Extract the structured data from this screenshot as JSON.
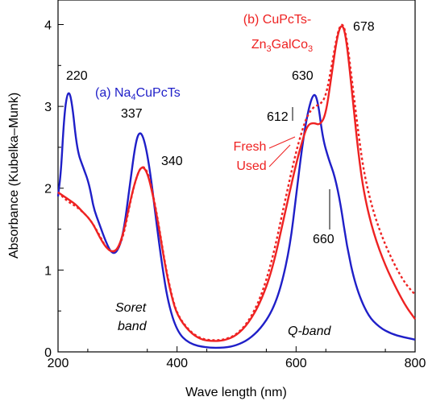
{
  "chart_data": {
    "type": "line",
    "title": "",
    "xlabel": "Wave length (nm)",
    "ylabel": "Absorbance (Kubelka–Munk)",
    "xlim": [
      200,
      800
    ],
    "ylim": [
      0,
      4.3
    ],
    "x_ticks": [
      200,
      400,
      600,
      800
    ],
    "y_ticks": [
      0,
      1,
      2,
      3,
      4
    ],
    "grid": false,
    "colors": {
      "blue": "#1f1fc8",
      "red": "#ee2222"
    },
    "series": [
      {
        "name": "(a) Na4CuPcTs",
        "color": "#1f1fc8",
        "style": "solid",
        "points": [
          [
            200,
            1.9
          ],
          [
            205,
            2.2
          ],
          [
            210,
            2.85
          ],
          [
            215,
            3.15
          ],
          [
            220,
            3.17
          ],
          [
            225,
            2.95
          ],
          [
            230,
            2.6
          ],
          [
            235,
            2.4
          ],
          [
            240,
            2.3
          ],
          [
            245,
            2.2
          ],
          [
            250,
            2.1
          ],
          [
            255,
            1.95
          ],
          [
            260,
            1.75
          ],
          [
            270,
            1.55
          ],
          [
            280,
            1.35
          ],
          [
            290,
            1.2
          ],
          [
            300,
            1.22
          ],
          [
            310,
            1.45
          ],
          [
            320,
            2.0
          ],
          [
            330,
            2.55
          ],
          [
            337,
            2.7
          ],
          [
            345,
            2.6
          ],
          [
            355,
            2.2
          ],
          [
            365,
            1.6
          ],
          [
            375,
            1.05
          ],
          [
            385,
            0.6
          ],
          [
            400,
            0.25
          ],
          [
            420,
            0.1
          ],
          [
            450,
            0.05
          ],
          [
            480,
            0.05
          ],
          [
            500,
            0.08
          ],
          [
            520,
            0.15
          ],
          [
            540,
            0.28
          ],
          [
            560,
            0.5
          ],
          [
            575,
            0.8
          ],
          [
            590,
            1.3
          ],
          [
            600,
            1.9
          ],
          [
            610,
            2.5
          ],
          [
            620,
            2.95
          ],
          [
            630,
            3.18
          ],
          [
            637,
            3.05
          ],
          [
            645,
            2.6
          ],
          [
            655,
            2.35
          ],
          [
            665,
            2.15
          ],
          [
            675,
            1.8
          ],
          [
            685,
            1.3
          ],
          [
            700,
            0.8
          ],
          [
            720,
            0.45
          ],
          [
            740,
            0.3
          ],
          [
            760,
            0.22
          ],
          [
            780,
            0.18
          ],
          [
            800,
            0.15
          ]
        ]
      },
      {
        "name": "Fresh",
        "color": "#ee2222",
        "style": "solid",
        "points": [
          [
            200,
            1.95
          ],
          [
            210,
            1.9
          ],
          [
            220,
            1.85
          ],
          [
            230,
            1.8
          ],
          [
            240,
            1.72
          ],
          [
            250,
            1.65
          ],
          [
            260,
            1.55
          ],
          [
            270,
            1.4
          ],
          [
            280,
            1.28
          ],
          [
            290,
            1.22
          ],
          [
            300,
            1.25
          ],
          [
            310,
            1.45
          ],
          [
            320,
            1.8
          ],
          [
            330,
            2.1
          ],
          [
            340,
            2.28
          ],
          [
            350,
            2.2
          ],
          [
            360,
            1.9
          ],
          [
            370,
            1.5
          ],
          [
            380,
            1.05
          ],
          [
            390,
            0.7
          ],
          [
            400,
            0.45
          ],
          [
            420,
            0.25
          ],
          [
            440,
            0.15
          ],
          [
            460,
            0.13
          ],
          [
            480,
            0.14
          ],
          [
            500,
            0.2
          ],
          [
            520,
            0.35
          ],
          [
            540,
            0.6
          ],
          [
            560,
            1.0
          ],
          [
            580,
            1.65
          ],
          [
            600,
            2.3
          ],
          [
            612,
            2.62
          ],
          [
            620,
            2.78
          ],
          [
            630,
            2.8
          ],
          [
            640,
            2.77
          ],
          [
            650,
            2.9
          ],
          [
            660,
            3.4
          ],
          [
            670,
            3.9
          ],
          [
            678,
            4.02
          ],
          [
            685,
            3.8
          ],
          [
            695,
            3.1
          ],
          [
            705,
            2.4
          ],
          [
            715,
            1.9
          ],
          [
            730,
            1.45
          ],
          [
            750,
            1.05
          ],
          [
            770,
            0.75
          ],
          [
            785,
            0.55
          ],
          [
            800,
            0.4
          ]
        ]
      },
      {
        "name": "Used",
        "color": "#ee2222",
        "style": "dotted",
        "points": [
          [
            200,
            1.95
          ],
          [
            210,
            1.88
          ],
          [
            220,
            1.82
          ],
          [
            230,
            1.78
          ],
          [
            240,
            1.72
          ],
          [
            250,
            1.65
          ],
          [
            260,
            1.55
          ],
          [
            270,
            1.42
          ],
          [
            280,
            1.28
          ],
          [
            290,
            1.22
          ],
          [
            300,
            1.24
          ],
          [
            310,
            1.42
          ],
          [
            320,
            1.78
          ],
          [
            330,
            2.1
          ],
          [
            340,
            2.28
          ],
          [
            350,
            2.22
          ],
          [
            360,
            1.92
          ],
          [
            370,
            1.52
          ],
          [
            380,
            1.07
          ],
          [
            390,
            0.72
          ],
          [
            400,
            0.46
          ],
          [
            420,
            0.26
          ],
          [
            440,
            0.16
          ],
          [
            460,
            0.14
          ],
          [
            480,
            0.15
          ],
          [
            500,
            0.21
          ],
          [
            520,
            0.37
          ],
          [
            540,
            0.65
          ],
          [
            560,
            1.12
          ],
          [
            580,
            1.8
          ],
          [
            600,
            2.45
          ],
          [
            612,
            2.75
          ],
          [
            620,
            2.9
          ],
          [
            630,
            3.0
          ],
          [
            640,
            3.02
          ],
          [
            650,
            3.12
          ],
          [
            660,
            3.5
          ],
          [
            670,
            3.92
          ],
          [
            678,
            4.03
          ],
          [
            685,
            3.85
          ],
          [
            695,
            3.25
          ],
          [
            705,
            2.65
          ],
          [
            715,
            2.15
          ],
          [
            730,
            1.7
          ],
          [
            750,
            1.3
          ],
          [
            770,
            1.0
          ],
          [
            785,
            0.82
          ],
          [
            800,
            0.7
          ]
        ]
      }
    ],
    "annotations": {
      "blue_label_prefix": "(a) Na",
      "blue_label_sub": "4",
      "blue_label_suffix": "CuPcTs",
      "red_label_line1": "(b) CuPcTs-",
      "red_label_line2_a": "Zn",
      "red_label_line2_sub1": "3",
      "red_label_line2_b": "GalCo",
      "red_label_line2_sub2": "3",
      "fresh": "Fresh",
      "used": "Used",
      "peak_220": "220",
      "peak_337": "337",
      "peak_340": "340",
      "peak_612": "612",
      "peak_630": "630",
      "peak_660": "660",
      "peak_678": "678",
      "soret_line1": "Soret",
      "soret_line2": "band",
      "qband": "Q-band"
    }
  }
}
